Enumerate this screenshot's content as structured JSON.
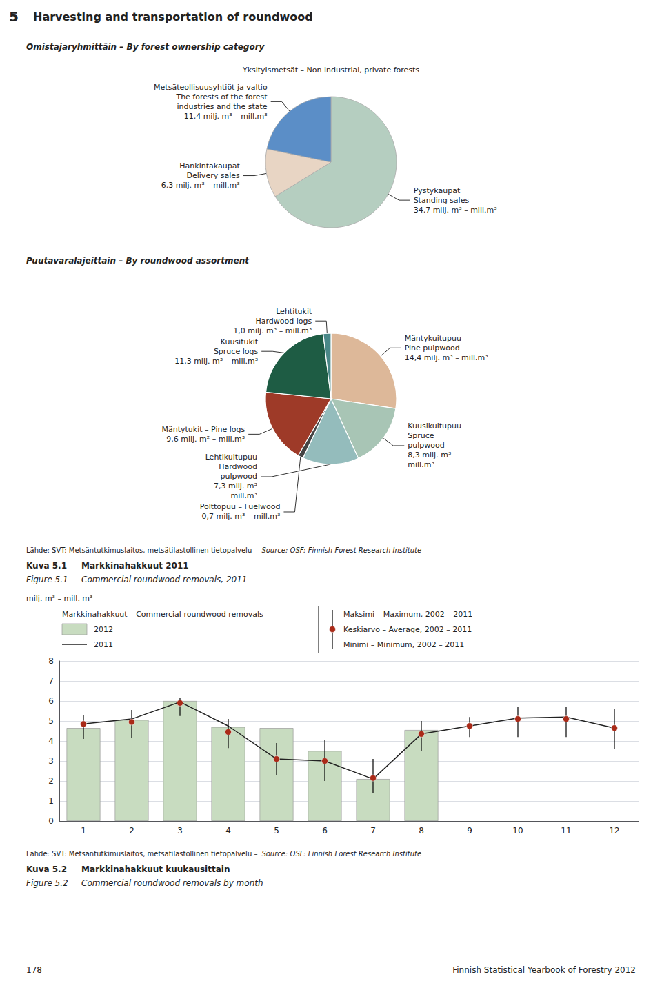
{
  "chart_data": [
    {
      "type": "pie",
      "title": "Omistajaryhmittäin – By forest ownership category",
      "annotations": [
        "5",
        "Harvesting and transportation of roundwood",
        "Yksityismetsät – Non industrial, private forests",
        "178",
        "Finnish Statistical Yearbook of Forestry 2012"
      ],
      "categories": [
        "Pystykaupat\nStanding sales",
        "Hankintakaupat\nDelivery sales",
        "Metsäteollisuusyhtiöt ja valtio\nThe forests of the forest\nindustries and the state"
      ],
      "values": [
        34.7,
        6.3,
        11.4
      ],
      "value_labels": [
        "34,7 milj. m³ – mill.m³",
        "6,3 milj. m³ – mill.m³",
        "11,4 milj. m³ – mill.m³"
      ],
      "colors": [
        "#b5cec0",
        "#e8d5c4",
        "#5b8ec7"
      ],
      "data_labels": true
    },
    {
      "type": "pie",
      "title": "Puutavaralajeittain – By roundwood assortment",
      "annotations": [
        "Lähde: SVT: Metsäntutkimuslaitos, metsätilastollinen tietopalvelu –",
        "Source: OSF: Finnish Forest Research Institute",
        "Kuva 5.1",
        "Markkinahakkuut 2011",
        "Figure 5.1",
        "Commercial roundwood removals, 2011"
      ],
      "categories": [
        "Mäntykuitupuu\nPine pulpwood",
        "Kuusikuitupuu\nSpruce\npulpwood",
        "Lehtikuitupuu\nHardwood\npulpwood",
        "Polttopuu – Fuelwood",
        "Mäntytukit – Pine logs",
        "Kuusitukit\nSpruce logs",
        "Lehtitukit\nHardwood logs"
      ],
      "values": [
        14.4,
        8.3,
        7.3,
        0.7,
        9.6,
        11.3,
        1.0
      ],
      "value_labels": [
        "14,4 milj. m³ – mill.m³",
        "8,3 milj. m³\nmill.m³",
        "7,3 milj. m³\nmill.m³",
        "0,7 milj. m³ – mill.m³",
        "9,6 milj. m² – mill.m³",
        "11,3 milj. m³ – mill.m³",
        "1,0 milj. m³ – mill.m³"
      ],
      "colors": [
        "#ddb899",
        "#a8c5b5",
        "#94bcbc",
        "#444444",
        "#9e3a28",
        "#1e5c44",
        "#4a8888"
      ],
      "data_labels": true
    },
    {
      "type": "bar",
      "annotations": [
        "Lähde: SVT: Metsäntutkimuslaitos, metsätilastollinen tietopalvelu –",
        "Source: OSF: Finnish Forest Research Institute",
        "Kuva 5.2",
        "Markkinahakkuut kuukausittain",
        "Figure 5.2",
        "Commercial roundwood removals by month"
      ],
      "ylabel": "milj. m³ – mill. m³",
      "legend_title": "Markkinahakkuut – Commercial roundwood removals",
      "legend": "top",
      "grid": true,
      "categories": [
        "1",
        "2",
        "3",
        "4",
        "5",
        "6",
        "7",
        "8",
        "9",
        "10",
        "11",
        "12"
      ],
      "ylim": [
        0,
        8
      ],
      "yticks": [
        0,
        1,
        2,
        3,
        4,
        5,
        6,
        7,
        8
      ],
      "series": [
        {
          "name": "2012",
          "type": "bar",
          "color": "#c8dcc0",
          "values": [
            4.65,
            5.05,
            6.0,
            4.7,
            4.65,
            3.5,
            2.1,
            4.55,
            null,
            null,
            null,
            null
          ]
        },
        {
          "name": "2011",
          "type": "line",
          "color": "#222222",
          "values": [
            4.85,
            5.1,
            5.95,
            4.75,
            3.1,
            3.0,
            2.1,
            4.35,
            4.75,
            5.15,
            5.2,
            4.65
          ]
        },
        {
          "name": "Keskiarvo – Average, 2002 – 2011",
          "type": "scatter",
          "marker": "circle",
          "color": "#aa2a18",
          "values": [
            4.85,
            4.95,
            5.9,
            4.45,
            3.1,
            3.0,
            2.15,
            4.35,
            4.75,
            5.1,
            5.1,
            4.65
          ],
          "max": [
            5.3,
            5.55,
            6.15,
            5.1,
            3.9,
            4.05,
            3.1,
            5.0,
            5.2,
            5.7,
            5.7,
            5.6
          ],
          "min": [
            4.1,
            4.15,
            5.25,
            3.65,
            2.3,
            2.0,
            1.4,
            3.5,
            4.2,
            4.2,
            4.2,
            3.6
          ],
          "max_label": "Maksimi – Maximum, 2002 – 2011",
          "min_label": "Minimi – Minimum, 2002 – 2011"
        }
      ]
    }
  ]
}
